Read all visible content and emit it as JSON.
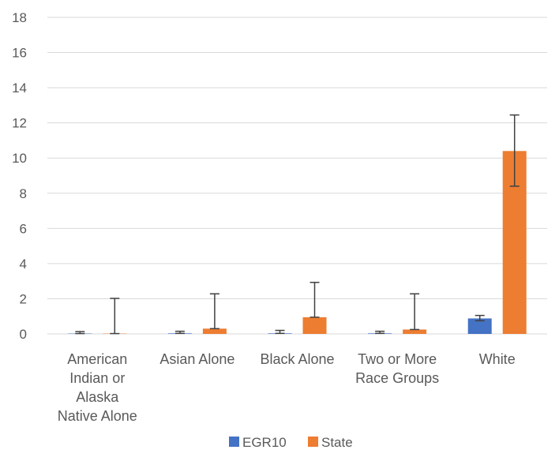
{
  "chart_data": {
    "type": "bar",
    "title": "",
    "xlabel": "",
    "ylabel": "",
    "ylim": [
      0,
      18
    ],
    "ytick_step": 2,
    "grid": true,
    "legend_position": "bottom",
    "categories": [
      [
        "American",
        "Indian or",
        "Alaska",
        "Native Alone"
      ],
      [
        "Asian Alone"
      ],
      [
        "Black Alone"
      ],
      [
        "Two or More",
        "Race Groups"
      ],
      [
        "White"
      ]
    ],
    "series": [
      {
        "name": "EGR10",
        "color": "#4472c4",
        "values": [
          0.02,
          0.03,
          0.03,
          0.03,
          0.88
        ],
        "error_low": [
          0.02,
          0.03,
          0.03,
          0.03,
          0.75
        ],
        "error_high": [
          0.13,
          0.15,
          0.2,
          0.15,
          1.05
        ]
      },
      {
        "name": "State",
        "color": "#ed7d31",
        "values": [
          0.02,
          0.3,
          0.95,
          0.25,
          10.4
        ],
        "error_low": [
          0.02,
          0.3,
          0.95,
          0.25,
          8.4
        ],
        "error_high": [
          2.02,
          2.28,
          2.93,
          2.28,
          12.45
        ]
      }
    ],
    "error_bar_color": "#404040",
    "grid_color": "#d9d9d9"
  }
}
